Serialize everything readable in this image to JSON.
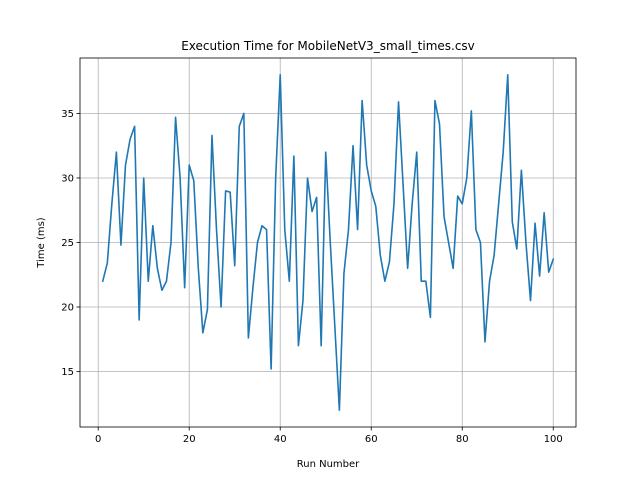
{
  "chart_data": {
    "type": "line",
    "title": "Execution Time for MobileNetV3_small_times.csv",
    "xlabel": "Run Number",
    "ylabel": "Time (ms)",
    "xlim": [
      -4,
      105
    ],
    "ylim": [
      10.7,
      39.3
    ],
    "xticks": [
      0,
      20,
      40,
      60,
      80,
      100
    ],
    "yticks": [
      15,
      20,
      25,
      30,
      35
    ],
    "grid": true,
    "color": "#1f77b4",
    "series": [
      {
        "x": [
          1,
          2,
          3,
          4,
          5,
          6,
          7,
          8,
          9,
          10,
          11,
          12,
          13,
          14,
          15,
          16,
          17,
          18,
          19,
          20,
          21,
          22,
          23,
          24,
          25,
          26,
          27,
          28,
          29,
          30,
          31,
          32,
          33,
          34,
          35,
          36,
          37,
          38,
          39,
          40,
          41,
          42,
          43,
          44,
          45,
          46,
          47,
          48,
          49,
          50,
          51,
          52,
          53,
          54,
          55,
          56,
          57,
          58,
          59,
          60,
          61,
          62,
          63,
          64,
          65,
          66,
          67,
          68,
          69,
          70,
          71,
          72,
          73,
          74,
          75,
          76,
          77,
          78,
          79,
          80,
          81,
          82,
          83,
          84,
          85,
          86,
          87,
          88,
          89,
          90,
          91,
          92,
          93,
          94,
          95,
          96,
          97,
          98,
          99,
          100
        ],
        "values": [
          22.0,
          23.4,
          28.0,
          32.0,
          24.8,
          31.0,
          33.0,
          34.0,
          19.0,
          30.0,
          22.0,
          26.3,
          23.0,
          21.3,
          22.0,
          25.0,
          34.7,
          30.0,
          21.5,
          31.0,
          29.8,
          23.0,
          18.0,
          19.8,
          33.3,
          26.0,
          20.0,
          29.0,
          28.9,
          23.2,
          34.0,
          35.0,
          17.6,
          21.5,
          25.0,
          26.3,
          26.0,
          15.2,
          30.0,
          38.0,
          26.0,
          22.0,
          31.7,
          17.0,
          20.5,
          30.0,
          27.4,
          28.5,
          17.0,
          32.0,
          25.0,
          18.5,
          12.0,
          22.6,
          26.0,
          32.5,
          26.0,
          36.0,
          31.0,
          29.0,
          27.8,
          24.0,
          22.0,
          23.5,
          28.0,
          35.9,
          29.5,
          23.0,
          28.0,
          32.0,
          22.0,
          22.0,
          19.2,
          36.0,
          34.2,
          27.0,
          25.0,
          23.0,
          28.6,
          28.0,
          30.0,
          35.2,
          26.0,
          25.0,
          17.3,
          22.0,
          24.0,
          28.0,
          32.0,
          38.0,
          26.6,
          24.5,
          30.6,
          25.0,
          20.5,
          26.5,
          22.4,
          27.3,
          22.7,
          23.7
        ]
      }
    ]
  }
}
